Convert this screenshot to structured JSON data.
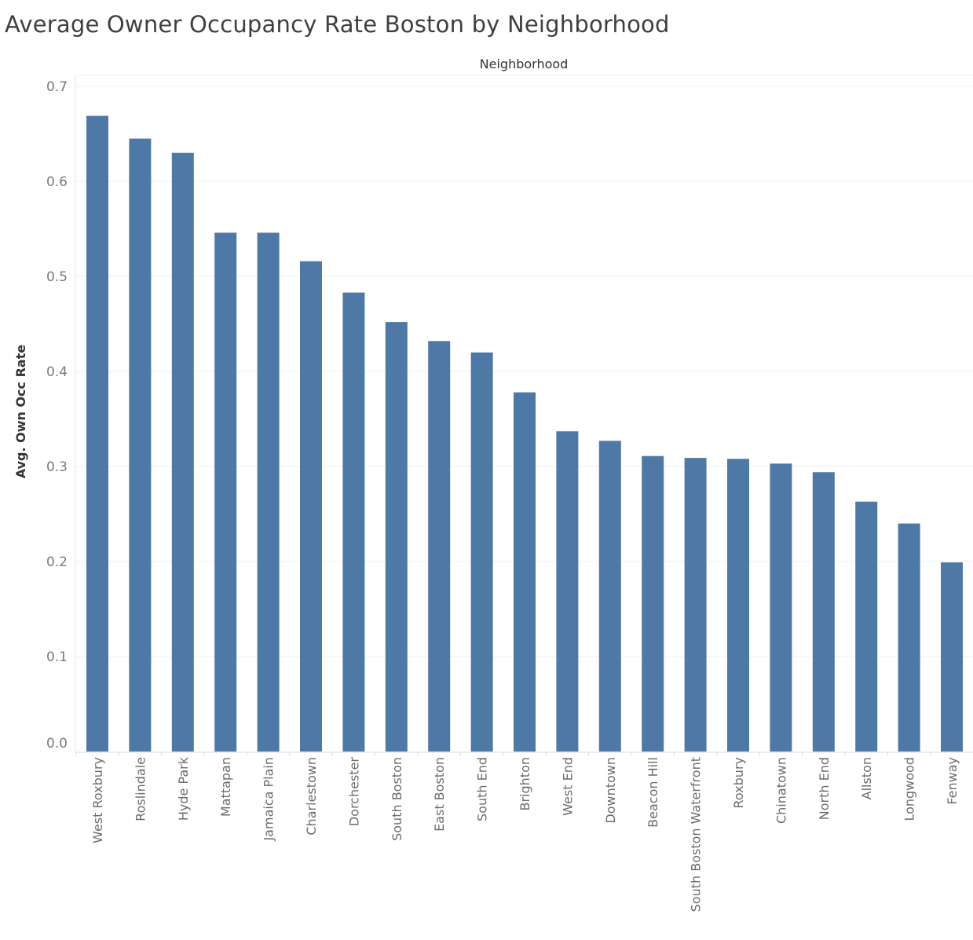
{
  "chart_data": {
    "type": "bar",
    "title": "Average Owner Occupancy Rate Boston by Neighborhood",
    "xlabel": "Neighborhood",
    "ylabel": "Avg. Own Occ Rate",
    "ylim": [
      0,
      0.7
    ],
    "yticks": [
      0.0,
      0.1,
      0.2,
      0.3,
      0.4,
      0.5,
      0.6,
      0.7
    ],
    "ytick_labels": [
      "0.0",
      "0.1",
      "0.2",
      "0.3",
      "0.4",
      "0.5",
      "0.6",
      "0.7"
    ],
    "grid": true,
    "bar_color": "#4e79a7",
    "categories": [
      "West Roxbury",
      "Roslindale",
      "Hyde Park",
      "Mattapan",
      "Jamaica Plain",
      "Charlestown",
      "Dorchester",
      "South Boston",
      "East Boston",
      "South End",
      "Brighton",
      "West End",
      "Downtown",
      "Beacon Hill",
      "South Boston Waterfront",
      "Roxbury",
      "Chinatown",
      "North End",
      "Allston",
      "Longwood",
      "Fenway"
    ],
    "values": [
      0.669,
      0.645,
      0.63,
      0.546,
      0.546,
      0.516,
      0.483,
      0.452,
      0.432,
      0.42,
      0.378,
      0.337,
      0.327,
      0.311,
      0.309,
      0.308,
      0.303,
      0.294,
      0.263,
      0.24,
      0.199
    ]
  }
}
